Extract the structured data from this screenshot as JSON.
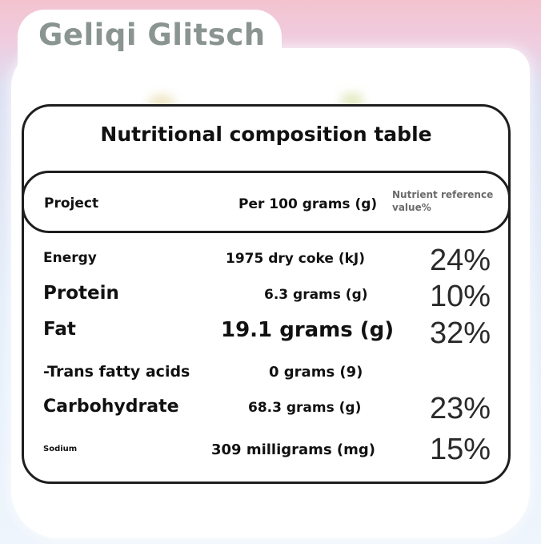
{
  "brand": "Geliqi Glitsch",
  "table": {
    "title": "Nutritional composition table",
    "headers": {
      "project": "Project",
      "per_100g": "Per 100 grams (g)",
      "nrv": "Nutrient reference value%"
    },
    "rows": [
      {
        "name": "Energy",
        "amount": "1975 dry coke (kJ)",
        "nrv": "24%"
      },
      {
        "name": "Protein",
        "amount": "6.3 grams (g)",
        "nrv": "10%"
      },
      {
        "name": "Fat",
        "amount": "19.1 grams (g)",
        "nrv": "32%"
      },
      {
        "name": "-Trans fatty acids",
        "amount": "0 grams (9)",
        "nrv": ""
      },
      {
        "name": "Carbohydrate",
        "amount": "68.3 grams (g)",
        "nrv": "23%"
      },
      {
        "name": "Sodium",
        "amount": "309 milligrams (mg)",
        "nrv": "15%"
      }
    ]
  }
}
